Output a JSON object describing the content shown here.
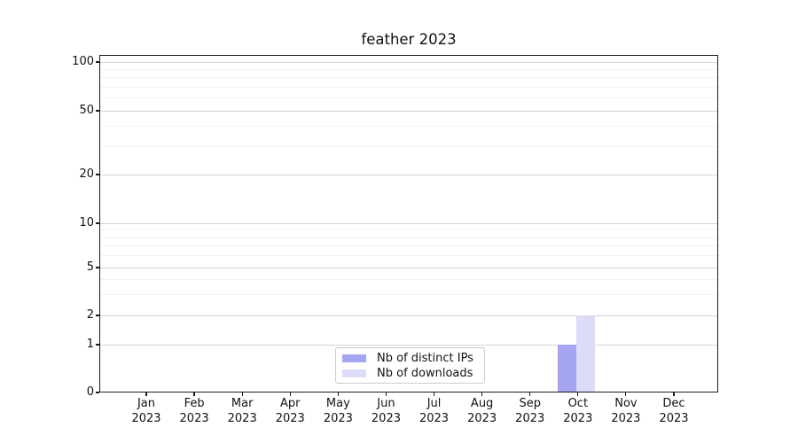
{
  "title": "feather 2023",
  "chart_data": {
    "type": "bar",
    "title": "feather 2023",
    "categories": [
      "Jan 2023",
      "Feb 2023",
      "Mar 2023",
      "Apr 2023",
      "May 2023",
      "Jun 2023",
      "Jul 2023",
      "Aug 2023",
      "Sep 2023",
      "Oct 2023",
      "Nov 2023",
      "Dec 2023"
    ],
    "series": [
      {
        "name": "Nb of distinct IPs",
        "color": "#a5a5f1",
        "values": [
          0,
          0,
          0,
          0,
          0,
          0,
          0,
          0,
          0,
          1,
          0,
          0
        ]
      },
      {
        "name": "Nb of downloads",
        "color": "#dcdcf8",
        "values": [
          0,
          0,
          0,
          0,
          0,
          0,
          0,
          0,
          0,
          2,
          0,
          0
        ]
      }
    ],
    "xlabel": "",
    "ylabel": "",
    "y_axis": {
      "scale": "symlog",
      "ticks": [
        0,
        1,
        2,
        5,
        10,
        20,
        50,
        100
      ],
      "minor_ticks": [
        3,
        4,
        6,
        7,
        8,
        9,
        30,
        40,
        60,
        70,
        80,
        90
      ],
      "ylim": [
        0,
        110
      ]
    },
    "grid": "horizontal",
    "legend_position": "lower center"
  }
}
